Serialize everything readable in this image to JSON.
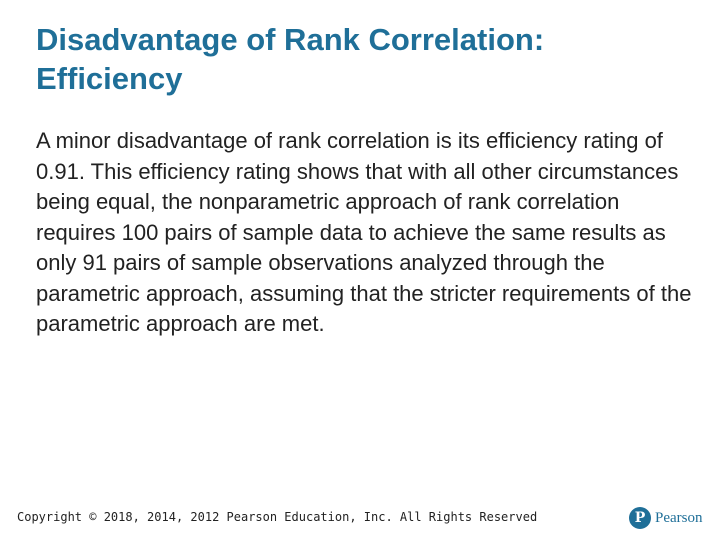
{
  "slide": {
    "title": "Disadvantage of Rank Correlation: Efficiency",
    "body": "A minor disadvantage of rank correlation is its efficiency rating of 0.91. This efficiency rating shows that with all other circumstances being equal, the nonparametric approach of rank correlation requires 100 pairs of sample data to achieve the same results as only 91 pairs of sample observations analyzed through the parametric approach, assuming that the stricter requirements of the parametric approach are met."
  },
  "footer": {
    "copyright": "Copyright © 2018, 2014, 2012 Pearson Education, Inc. All Rights Reserved",
    "brand_mark": "P",
    "brand_name": "Pearson"
  },
  "colors": {
    "accent": "#1f6f98",
    "text": "#222222",
    "background": "#ffffff"
  },
  "icons": {
    "brand": "pearson-logo-icon"
  }
}
